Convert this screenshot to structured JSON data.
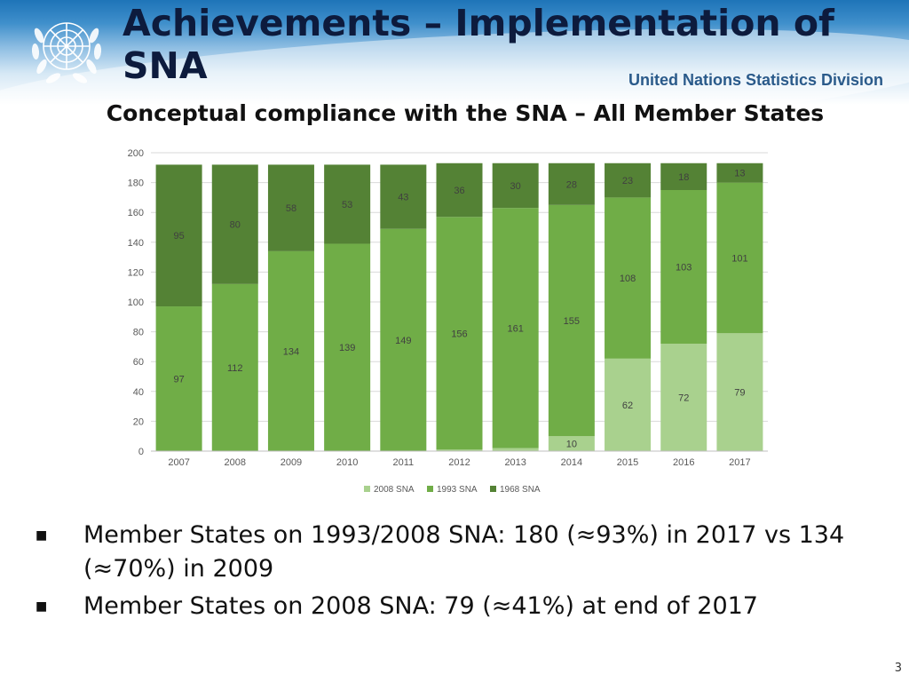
{
  "header": {
    "title": "Achievements – Implementation of\nSNA",
    "organization": "United Nations Statistics Division"
  },
  "colors": {
    "sna2008": "#a9d18e",
    "sna1993": "#70ad47",
    "sna1968": "#548235"
  },
  "chart_data": {
    "type": "bar",
    "stacked": true,
    "title": "Conceptual compliance with the SNA – All Member States",
    "xlabel": "",
    "ylabel": "",
    "ylim": [
      0,
      200
    ],
    "yticks": [
      0,
      20,
      40,
      60,
      80,
      100,
      120,
      140,
      160,
      180,
      200
    ],
    "grid": true,
    "legend_position": "bottom",
    "categories": [
      "2007",
      "2008",
      "2009",
      "2010",
      "2011",
      "2012",
      "2013",
      "2014",
      "2015",
      "2016",
      "2017"
    ],
    "series": [
      {
        "name": "2008 SNA",
        "values": [
          0,
          0,
          0,
          0,
          0,
          1,
          2,
          10,
          62,
          72,
          79
        ],
        "labels": [
          "",
          "",
          "",
          "",
          "",
          "1",
          "2",
          "10",
          "62",
          "72",
          "79"
        ]
      },
      {
        "name": "1993 SNA",
        "values": [
          97,
          112,
          134,
          139,
          149,
          156,
          161,
          155,
          108,
          103,
          101
        ],
        "labels": [
          "97",
          "112",
          "134",
          "139",
          "149",
          "156",
          "161",
          "155",
          "108",
          "103",
          "101"
        ]
      },
      {
        "name": "1968 SNA",
        "values": [
          95,
          80,
          58,
          53,
          43,
          36,
          30,
          28,
          23,
          18,
          13
        ],
        "labels": [
          "95",
          "80",
          "58",
          "53",
          "43",
          "36",
          "30",
          "28",
          "23",
          "18",
          "13"
        ]
      }
    ]
  },
  "bullets": [
    "Member States on 1993/2008 SNA: 180 (≈93%) in 2017 vs 134 (≈70%) in 2009",
    "Member States on 2008 SNA: 79 (≈41%) at end of 2017"
  ],
  "bullet_marker": "■",
  "page_number": "3"
}
